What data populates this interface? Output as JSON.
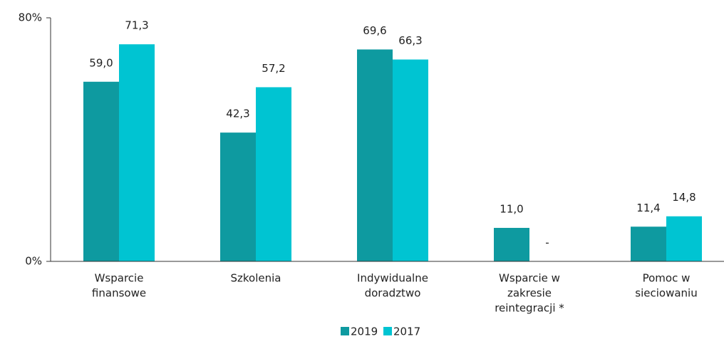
{
  "chart_data": {
    "type": "bar",
    "categories": [
      [
        "Wsparcie",
        "finansowe"
      ],
      [
        "Szkolenia"
      ],
      [
        "Indywidualne",
        "doradztwo"
      ],
      [
        "Wsparcie w",
        "zakresie",
        "reintegracji *"
      ],
      [
        "Pomoc w",
        "sieciowaniu"
      ]
    ],
    "series": [
      {
        "name": "2019",
        "color": "#0e9aa0",
        "values": [
          59.0,
          42.3,
          69.6,
          11.0,
          11.4
        ],
        "value_labels": [
          "59,0",
          "42,3",
          "69,6",
          "11,0",
          "11,4"
        ]
      },
      {
        "name": "2017",
        "color": "#00c4d2",
        "values": [
          71.3,
          57.2,
          66.3,
          null,
          14.8
        ],
        "value_labels": [
          "71,3",
          "57,2",
          "66,3",
          "-",
          "14,8"
        ]
      }
    ],
    "ylim": [
      0,
      80
    ],
    "yticks": [
      {
        "value": 0,
        "label": "0%"
      },
      {
        "value": 80,
        "label": "80%"
      }
    ],
    "legend": "bottom"
  }
}
